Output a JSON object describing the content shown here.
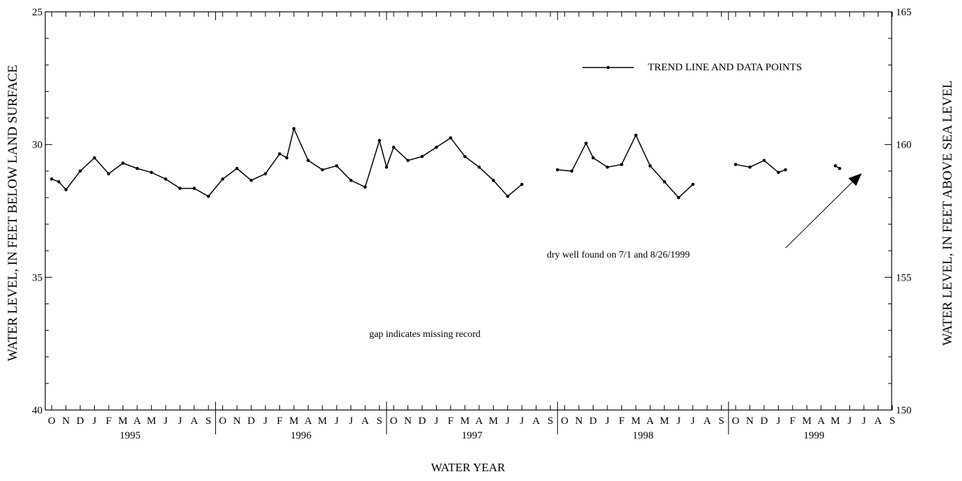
{
  "chart_data": {
    "type": "line",
    "left_axis": {
      "label": "WATER LEVEL, IN FEET BELOW LAND SURFACE",
      "range": [
        25,
        40
      ],
      "inverted": true,
      "ticks": [
        25,
        30,
        35,
        40
      ]
    },
    "right_axis": {
      "label": "WATER LEVEL, IN FEET ABOVE SEA LEVEL",
      "range": [
        150,
        165
      ],
      "ticks": [
        150,
        155,
        160,
        165
      ]
    },
    "xlabel": "WATER YEAR",
    "month_labels": [
      "O",
      "N",
      "D",
      "J",
      "F",
      "M",
      "A",
      "M",
      "J",
      "J",
      "A",
      "S"
    ],
    "water_years": [
      "1995",
      "1996",
      "1997",
      "1998",
      "1999"
    ],
    "legend": {
      "label": "TREND LINE AND DATA POINTS",
      "position": "top-right"
    },
    "annotations": [
      {
        "text": "dry well found on 7/1 and 8/26/1999"
      },
      {
        "text": "gap indicates missing record"
      }
    ],
    "series": [
      {
        "segments": [
          [
            [
              0,
              31.3
            ],
            [
              0.5,
              31.4
            ],
            [
              1,
              31.7
            ],
            [
              2,
              31.0
            ],
            [
              3,
              30.5
            ],
            [
              4,
              31.1
            ],
            [
              5,
              30.7
            ],
            [
              6,
              30.9
            ],
            [
              7,
              31.05
            ],
            [
              8,
              31.3
            ],
            [
              9,
              31.65
            ],
            [
              10,
              31.65
            ],
            [
              11,
              31.95
            ],
            [
              12,
              31.3
            ],
            [
              13,
              30.9
            ],
            [
              14,
              31.35
            ],
            [
              15,
              31.1
            ],
            [
              16,
              30.35
            ],
            [
              16.5,
              30.5
            ],
            [
              17,
              29.4
            ],
            [
              18,
              30.6
            ],
            [
              19,
              30.95
            ],
            [
              20,
              30.8
            ],
            [
              21,
              31.35
            ],
            [
              22,
              31.6
            ],
            [
              23,
              29.85
            ],
            [
              23.5,
              30.85
            ],
            [
              24,
              30.1
            ],
            [
              25,
              30.6
            ],
            [
              26,
              30.45
            ],
            [
              27,
              30.1
            ],
            [
              28,
              29.75
            ],
            [
              29,
              30.45
            ],
            [
              30,
              30.85
            ],
            [
              31,
              31.35
            ],
            [
              32,
              31.95
            ],
            [
              33,
              31.5
            ]
          ],
          [
            [
              35.5,
              30.95
            ],
            [
              36.5,
              31.0
            ],
            [
              37.5,
              29.95
            ],
            [
              38,
              30.5
            ],
            [
              39,
              30.85
            ],
            [
              40,
              30.75
            ],
            [
              41,
              29.65
            ],
            [
              42,
              30.8
            ],
            [
              43,
              31.4
            ],
            [
              44,
              32.0
            ],
            [
              45,
              31.5
            ]
          ],
          [
            [
              48,
              30.75
            ],
            [
              49,
              30.85
            ],
            [
              50,
              30.6
            ],
            [
              51,
              31.05
            ],
            [
              51.5,
              30.95
            ]
          ],
          [
            [
              55,
              30.8
            ],
            [
              55.3,
              30.9
            ]
          ]
        ]
      }
    ]
  }
}
